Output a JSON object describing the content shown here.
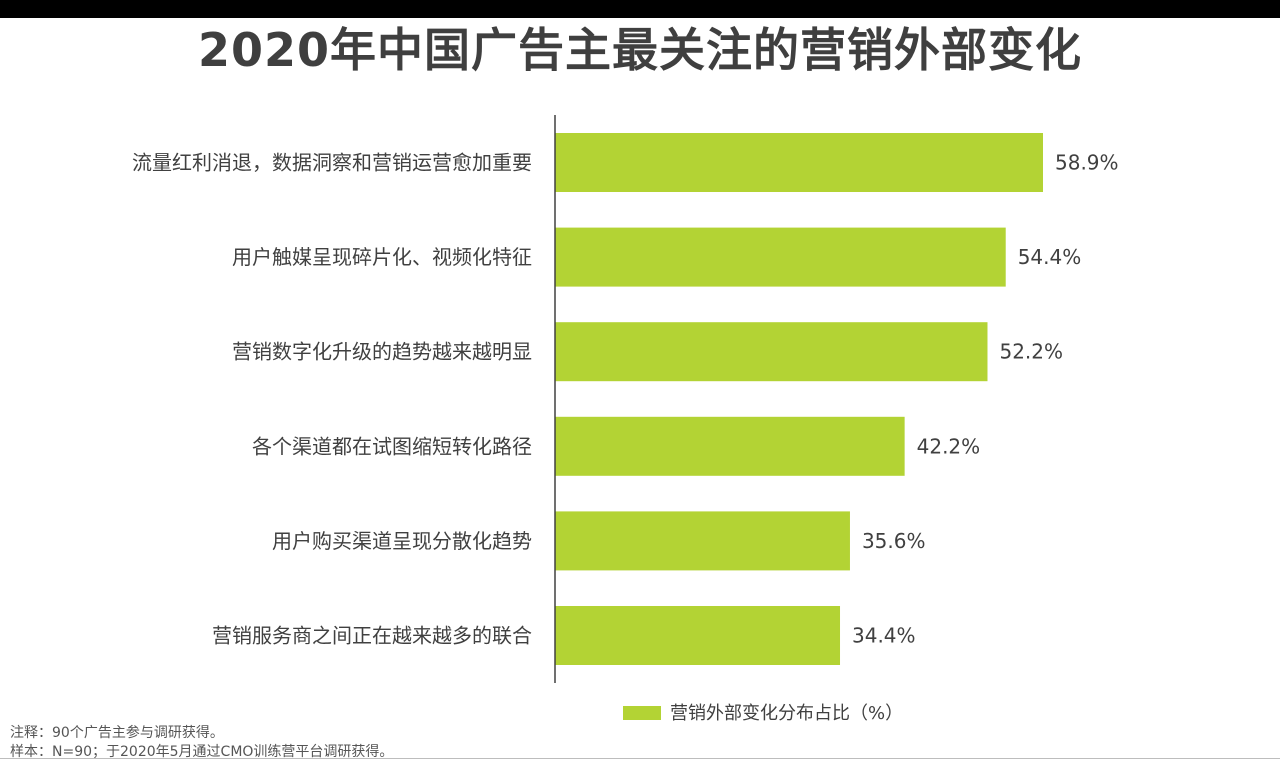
{
  "title": "2020年中国广告主最关注的营销外部变化",
  "notes": {
    "note": "注释：90个广告主参与调研获得。",
    "sample": "样本：N=90；于2020年5月通过CMO训练营平台调研获得。"
  },
  "colors": {
    "bar": "#b3d334",
    "text": "#404040",
    "axis": "#404040"
  },
  "chart_data": {
    "type": "bar",
    "orientation": "horizontal",
    "categories": [
      "流量红利消退，数据洞察和营销运营愈加重要",
      "用户触媒呈现碎片化、视频化特征",
      "营销数字化升级的趋势越来越明显",
      "各个渠道都在试图缩短转化路径",
      "用户购买渠道呈现分散化趋势",
      "营销服务商之间正在越来越多的联合"
    ],
    "series": [
      {
        "name": "营销外部变化分布占比（%）",
        "values": [
          58.9,
          54.4,
          52.2,
          42.2,
          35.6,
          34.4
        ]
      }
    ],
    "value_labels": [
      "58.9%",
      "54.4%",
      "52.2%",
      "42.2%",
      "35.6%",
      "34.4%"
    ],
    "xlim": [
      0,
      60
    ],
    "grid": false,
    "legend": "bottom"
  }
}
